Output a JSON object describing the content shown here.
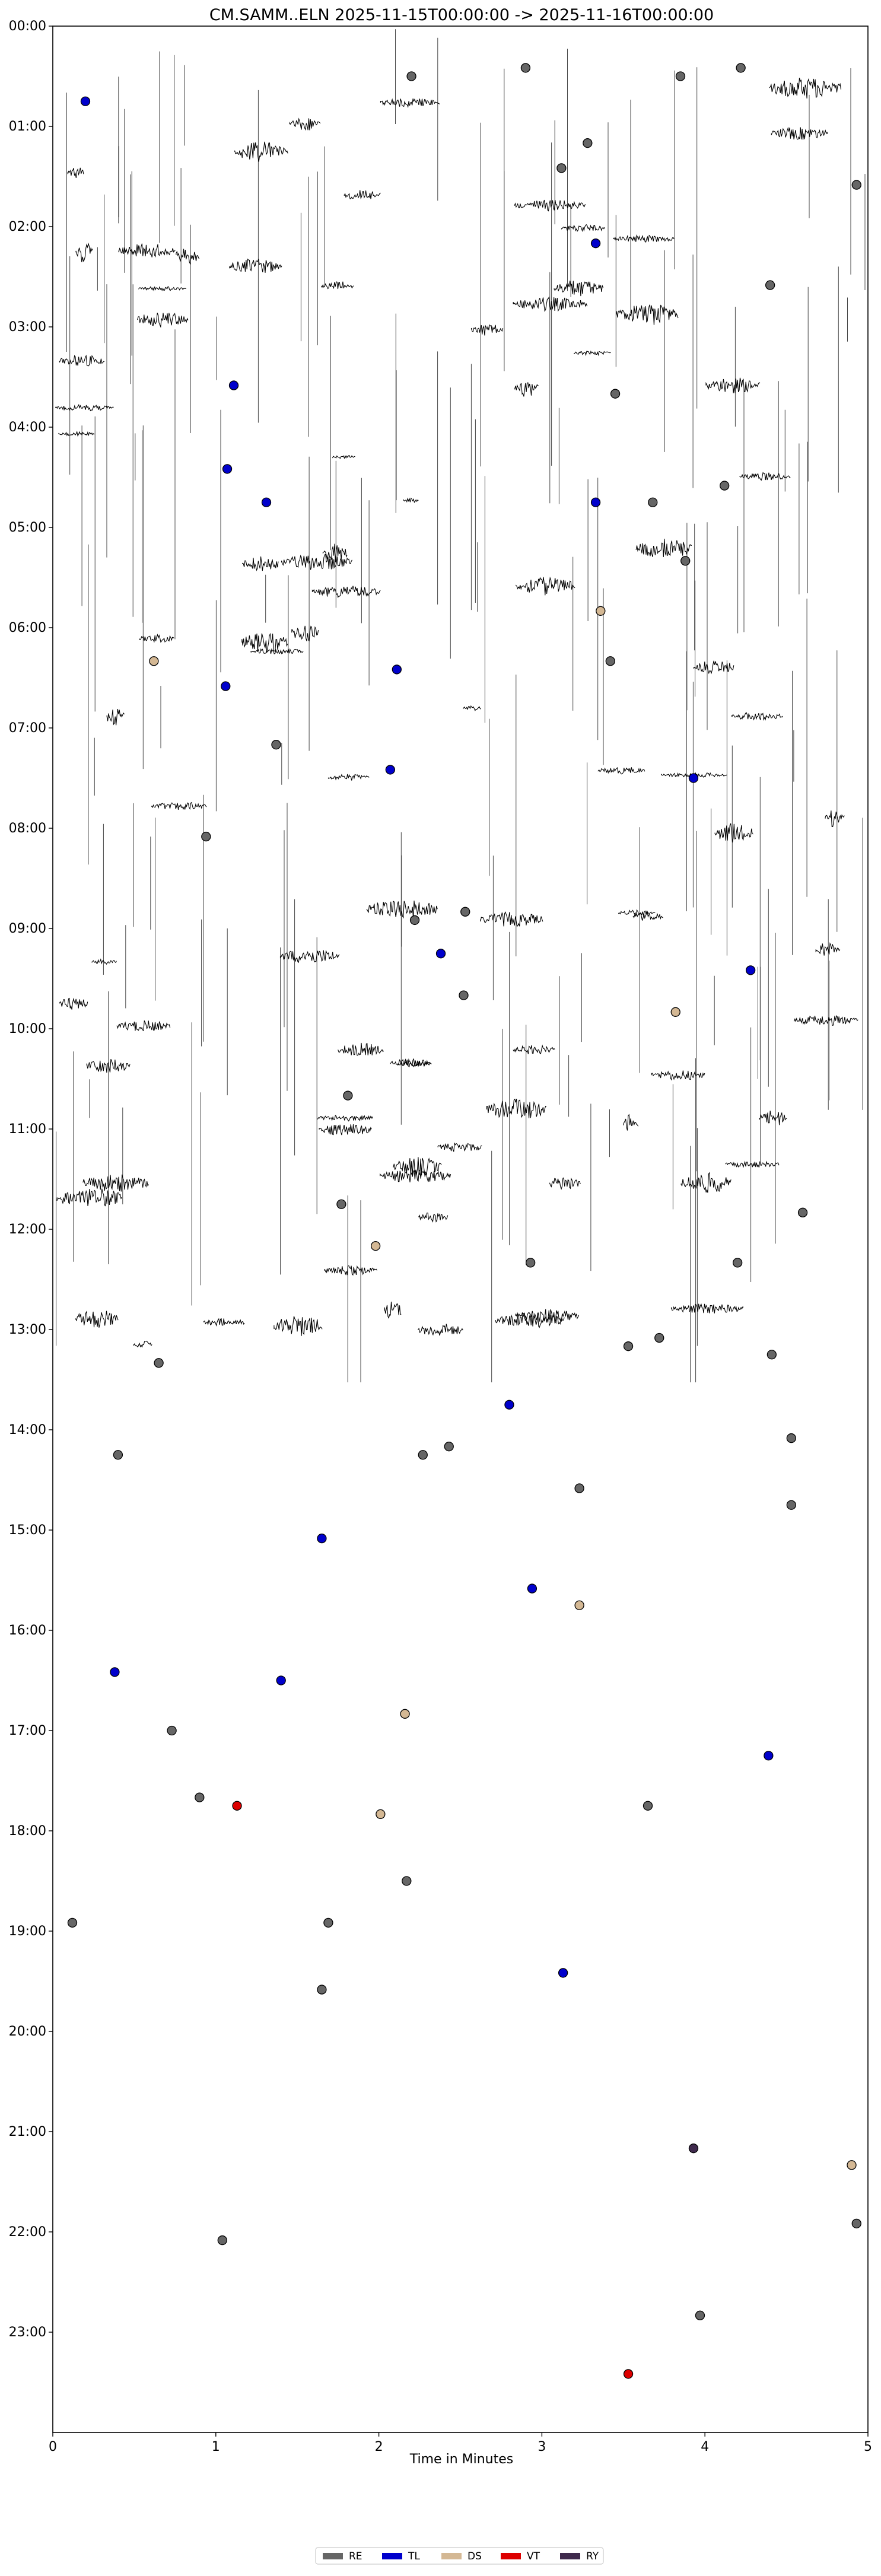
{
  "chart_data": {
    "type": "scatter",
    "title": "CM.SAMM..ELN  2025-11-15T00:00:00 -> 2025-11-16T00:00:00",
    "xlabel": "Time in Minutes",
    "ylabel": "",
    "xlim": [
      0,
      5
    ],
    "ylim": [
      "00:00",
      "24:00"
    ],
    "y_inverted": true,
    "x_ticks": [
      "0",
      "1",
      "2",
      "3",
      "4",
      "5"
    ],
    "y_ticks": [
      "00:00",
      "01:00",
      "02:00",
      "03:00",
      "04:00",
      "05:00",
      "06:00",
      "07:00",
      "08:00",
      "09:00",
      "10:00",
      "11:00",
      "12:00",
      "13:00",
      "14:00",
      "15:00",
      "16:00",
      "17:00",
      "18:00",
      "19:00",
      "20:00",
      "21:00",
      "22:00",
      "23:00"
    ],
    "grid": false,
    "legend_position": "bottom-center",
    "trace_color": "#000000",
    "series": [
      {
        "name": "RE",
        "color": "#666666",
        "points": [
          {
            "x": 2.2,
            "y": "00:30"
          },
          {
            "x": 2.9,
            "y": "00:25"
          },
          {
            "x": 3.85,
            "y": "00:30"
          },
          {
            "x": 4.22,
            "y": "00:25"
          },
          {
            "x": 3.28,
            "y": "01:10"
          },
          {
            "x": 3.12,
            "y": "01:25"
          },
          {
            "x": 4.93,
            "y": "01:35"
          },
          {
            "x": 4.4,
            "y": "02:35"
          },
          {
            "x": 3.45,
            "y": "03:40"
          },
          {
            "x": 3.68,
            "y": "04:45"
          },
          {
            "x": 4.12,
            "y": "04:35"
          },
          {
            "x": 3.88,
            "y": "05:20"
          },
          {
            "x": 3.42,
            "y": "06:20"
          },
          {
            "x": 1.37,
            "y": "07:10"
          },
          {
            "x": 0.94,
            "y": "08:05"
          },
          {
            "x": 2.22,
            "y": "08:55"
          },
          {
            "x": 2.53,
            "y": "08:50"
          },
          {
            "x": 2.52,
            "y": "09:40"
          },
          {
            "x": 1.81,
            "y": "10:40"
          },
          {
            "x": 1.77,
            "y": "11:45"
          },
          {
            "x": 4.6,
            "y": "11:50"
          },
          {
            "x": 2.93,
            "y": "12:20"
          },
          {
            "x": 4.2,
            "y": "12:20"
          },
          {
            "x": 3.53,
            "y": "13:10"
          },
          {
            "x": 3.72,
            "y": "13:05"
          },
          {
            "x": 4.41,
            "y": "13:15"
          },
          {
            "x": 0.65,
            "y": "13:20"
          },
          {
            "x": 0.4,
            "y": "14:15"
          },
          {
            "x": 2.27,
            "y": "14:15"
          },
          {
            "x": 2.43,
            "y": "14:10"
          },
          {
            "x": 4.53,
            "y": "14:05"
          },
          {
            "x": 3.23,
            "y": "14:35"
          },
          {
            "x": 4.53,
            "y": "14:45"
          },
          {
            "x": 0.73,
            "y": "17:00"
          },
          {
            "x": 0.9,
            "y": "17:40"
          },
          {
            "x": 3.65,
            "y": "17:45"
          },
          {
            "x": 2.17,
            "y": "18:30"
          },
          {
            "x": 0.12,
            "y": "18:55"
          },
          {
            "x": 1.69,
            "y": "18:55"
          },
          {
            "x": 1.65,
            "y": "19:35"
          },
          {
            "x": 1.04,
            "y": "22:05"
          },
          {
            "x": 4.93,
            "y": "21:55"
          },
          {
            "x": 3.97,
            "y": "22:50"
          }
        ]
      },
      {
        "name": "TL",
        "color": "#0000cc",
        "points": [
          {
            "x": 0.2,
            "y": "00:45"
          },
          {
            "x": 3.33,
            "y": "02:10"
          },
          {
            "x": 1.11,
            "y": "03:35"
          },
          {
            "x": 1.07,
            "y": "04:25"
          },
          {
            "x": 1.31,
            "y": "04:45"
          },
          {
            "x": 3.33,
            "y": "04:45"
          },
          {
            "x": 2.11,
            "y": "06:25"
          },
          {
            "x": 1.06,
            "y": "06:35"
          },
          {
            "x": 2.07,
            "y": "07:25"
          },
          {
            "x": 3.93,
            "y": "07:30"
          },
          {
            "x": 2.38,
            "y": "09:15"
          },
          {
            "x": 4.28,
            "y": "09:25"
          },
          {
            "x": 2.8,
            "y": "13:45"
          },
          {
            "x": 1.65,
            "y": "15:05"
          },
          {
            "x": 2.94,
            "y": "15:35"
          },
          {
            "x": 0.38,
            "y": "16:25"
          },
          {
            "x": 1.4,
            "y": "16:30"
          },
          {
            "x": 4.39,
            "y": "17:15"
          },
          {
            "x": 3.13,
            "y": "19:25"
          }
        ]
      },
      {
        "name": "DS",
        "color": "#d4b894",
        "points": [
          {
            "x": 0.62,
            "y": "06:20"
          },
          {
            "x": 3.36,
            "y": "05:50"
          },
          {
            "x": 3.82,
            "y": "09:50"
          },
          {
            "x": 1.98,
            "y": "12:10"
          },
          {
            "x": 3.23,
            "y": "15:45"
          },
          {
            "x": 2.16,
            "y": "16:50"
          },
          {
            "x": 2.01,
            "y": "17:50"
          },
          {
            "x": 4.9,
            "y": "21:20"
          }
        ]
      },
      {
        "name": "VT",
        "color": "#dd0000",
        "points": [
          {
            "x": 1.13,
            "y": "17:45"
          },
          {
            "x": 3.53,
            "y": "23:25"
          }
        ]
      },
      {
        "name": "RY",
        "color": "#3f2a4d",
        "points": [
          {
            "x": 3.93,
            "y": "21:10"
          }
        ]
      }
    ]
  }
}
